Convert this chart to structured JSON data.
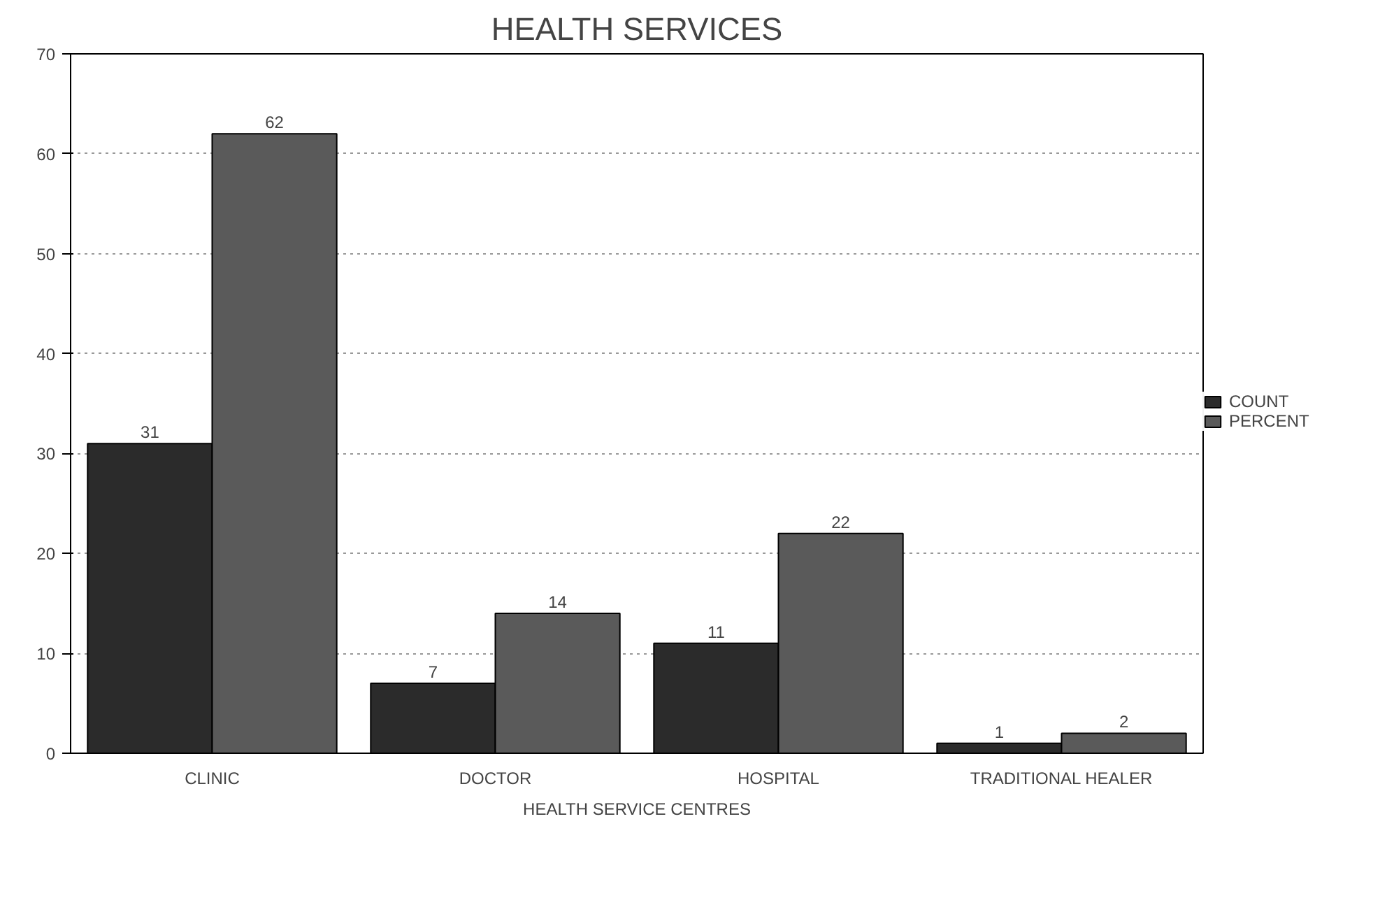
{
  "chart_data": {
    "type": "bar",
    "title": "HEALTH SERVICES",
    "xlabel": "HEALTH SERVICE CENTRES",
    "categories": [
      "CLINIC",
      "DOCTOR",
      "HOSPITAL",
      "TRADITIONAL HEALER"
    ],
    "series": [
      {
        "name": "COUNT",
        "color": "#2b2b2b",
        "values": [
          31,
          7,
          11,
          1
        ]
      },
      {
        "name": "PERCENT",
        "color": "#5a5a5a",
        "values": [
          62,
          14,
          22,
          2
        ]
      }
    ],
    "ylim": [
      0,
      70
    ],
    "yticks": [
      0,
      10,
      20,
      30,
      40,
      50,
      60,
      70
    ],
    "grid": "y",
    "legend": "right",
    "data_labels": true
  }
}
